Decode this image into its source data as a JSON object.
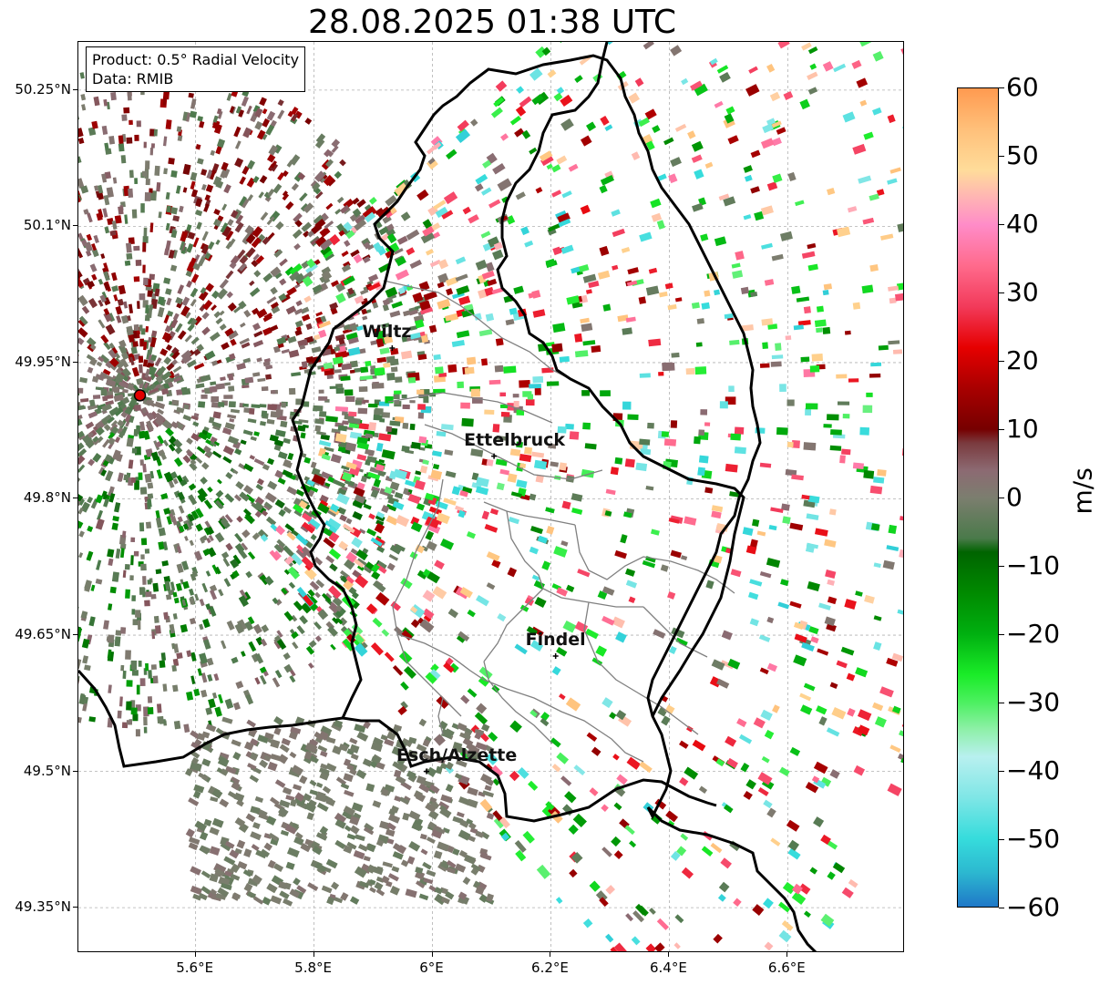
{
  "title": "28.08.2025 01:38 UTC",
  "info_box": {
    "product": "Product: 0.5° Radial Velocity",
    "data_source": "Data: RMIB"
  },
  "map": {
    "lon_range": [
      5.402,
      6.798
    ],
    "lat_range": [
      49.3,
      50.303
    ],
    "lat_ticks": [
      {
        "value": 50.25,
        "label": "50.25°N"
      },
      {
        "value": 50.1,
        "label": "50.1°N"
      },
      {
        "value": 49.95,
        "label": "49.95°N"
      },
      {
        "value": 49.8,
        "label": "49.8°N"
      },
      {
        "value": 49.65,
        "label": "49.65°N"
      },
      {
        "value": 49.5,
        "label": "49.5°N"
      },
      {
        "value": 49.35,
        "label": "49.35°N"
      }
    ],
    "lon_ticks": [
      {
        "value": 5.6,
        "label": "5.6°E"
      },
      {
        "value": 5.8,
        "label": "5.8°E"
      },
      {
        "value": 6.0,
        "label": "6°E"
      },
      {
        "value": 6.2,
        "label": "6.2°E"
      },
      {
        "value": 6.4,
        "label": "6.4°E"
      },
      {
        "value": 6.6,
        "label": "6.6°E"
      }
    ],
    "radar_site": {
      "lon": 5.506,
      "lat": 49.914
    },
    "cities": [
      {
        "name": "Wiltz",
        "lon": 5.932,
        "lat": 49.966
      },
      {
        "name": "Ettelbruck",
        "lon": 6.104,
        "lat": 49.847
      },
      {
        "name": "Findel",
        "lon": 6.208,
        "lat": 49.627
      },
      {
        "name": "Esch/Alzette",
        "lon": 5.99,
        "lat": 49.5
      }
    ],
    "border_color": "#000000",
    "canton_color": "#808080"
  },
  "colorbar": {
    "unit": "m/s",
    "vmin": -60,
    "vmax": 60,
    "ticks": [
      {
        "value": 60,
        "label": "60"
      },
      {
        "value": 50,
        "label": "50"
      },
      {
        "value": 40,
        "label": "40"
      },
      {
        "value": 30,
        "label": "30"
      },
      {
        "value": 20,
        "label": "20"
      },
      {
        "value": 10,
        "label": "10"
      },
      {
        "value": 0,
        "label": "0"
      },
      {
        "value": -10,
        "label": "−10"
      },
      {
        "value": -20,
        "label": "−20"
      },
      {
        "value": -30,
        "label": "−30"
      },
      {
        "value": -40,
        "label": "−40"
      },
      {
        "value": -50,
        "label": "−50"
      },
      {
        "value": -60,
        "label": "−60"
      }
    ],
    "stops": [
      {
        "value": -60,
        "color": "#1f78c8"
      },
      {
        "value": -55,
        "color": "#2cb8d0"
      },
      {
        "value": -50,
        "color": "#36dcdc"
      },
      {
        "value": -44,
        "color": "#7fe6e6"
      },
      {
        "value": -38,
        "color": "#b8f0ef"
      },
      {
        "value": -34,
        "color": "#8ef0a8"
      },
      {
        "value": -30,
        "color": "#4cf060"
      },
      {
        "value": -26,
        "color": "#1aec28"
      },
      {
        "value": -20,
        "color": "#00b010"
      },
      {
        "value": -14,
        "color": "#008a00"
      },
      {
        "value": -8,
        "color": "#006400"
      },
      {
        "value": -6,
        "color": "#4a7a4a"
      },
      {
        "value": 0,
        "color": "#7c7e6f"
      },
      {
        "value": 4,
        "color": "#8c6a72"
      },
      {
        "value": 8,
        "color": "#7a3a3e"
      },
      {
        "value": 10,
        "color": "#760000"
      },
      {
        "value": 16,
        "color": "#a80000"
      },
      {
        "value": 22,
        "color": "#e60000"
      },
      {
        "value": 28,
        "color": "#f23a5a"
      },
      {
        "value": 34,
        "color": "#ff6a8c"
      },
      {
        "value": 40,
        "color": "#ff8cc8"
      },
      {
        "value": 44,
        "color": "#ffb4b4"
      },
      {
        "value": 48,
        "color": "#ffdc9a"
      },
      {
        "value": 54,
        "color": "#ffc07a"
      },
      {
        "value": 60,
        "color": "#ff9a50"
      }
    ]
  }
}
